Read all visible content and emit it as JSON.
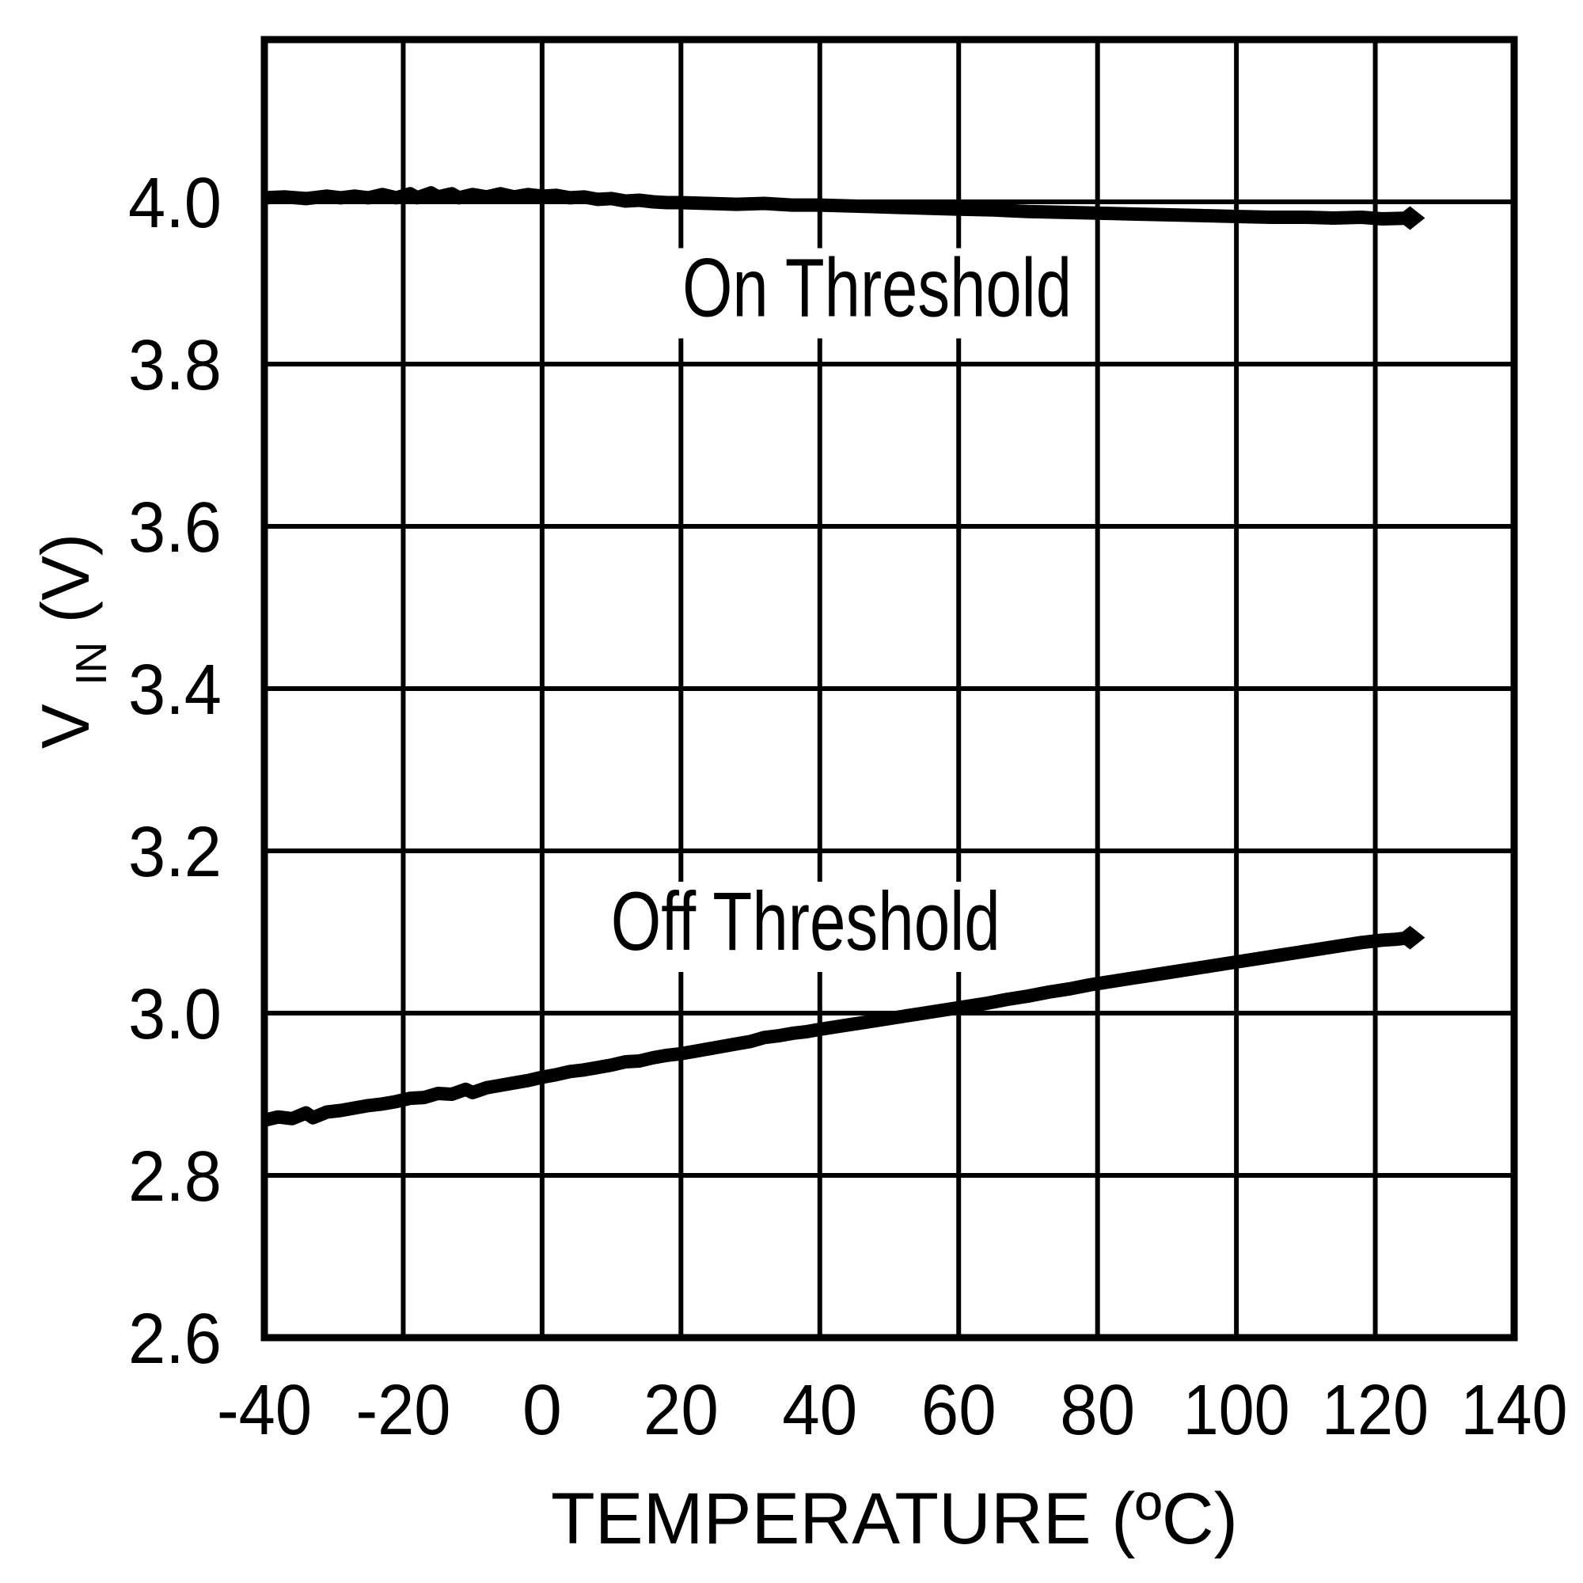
{
  "chart_data": {
    "type": "line",
    "title": "",
    "xlabel": "TEMPERATURE (ºC)",
    "ylabel": {
      "main": "V",
      "sub": "IN",
      "unit": " (V)"
    },
    "xlim": [
      -40,
      140
    ],
    "ylim": [
      2.6,
      4.2
    ],
    "x_tick_step": 20,
    "y_tick_step": 0.2,
    "x_tick_labels": [
      "-40",
      "-20",
      "0",
      "20",
      "40",
      "60",
      "80",
      "100",
      "120",
      "140"
    ],
    "y_tick_labels": [
      "2.6",
      "2.8",
      "3.0",
      "3.2",
      "3.4",
      "3.6",
      "3.8",
      "4.0"
    ],
    "grid": true,
    "background_color": "#ffffff",
    "line_color": "#000000",
    "legend_position": "inline-annotations",
    "annotations": [
      {
        "text": "On Threshold",
        "x": 20.2,
        "y": 3.859
      },
      {
        "text": "Off Threshold",
        "x": 9.9,
        "y": 3.078
      }
    ],
    "series": [
      {
        "name": "On Threshold",
        "end_marker": "diamond",
        "points": [
          [
            -40,
            4.005
          ],
          [
            -37,
            4.006
          ],
          [
            -34,
            4.004
          ],
          [
            -31,
            4.007
          ],
          [
            -29,
            4.005
          ],
          [
            -27,
            4.007
          ],
          [
            -25,
            4.005
          ],
          [
            -23,
            4.009
          ],
          [
            -21,
            4.005
          ],
          [
            -19,
            4.01
          ],
          [
            -18,
            4.005
          ],
          [
            -16,
            4.011
          ],
          [
            -15,
            4.006
          ],
          [
            -13,
            4.01
          ],
          [
            -12,
            4.005
          ],
          [
            -10,
            4.009
          ],
          [
            -8,
            4.006
          ],
          [
            -6,
            4.01
          ],
          [
            -4,
            4.006
          ],
          [
            -2,
            4.009
          ],
          [
            0,
            4.007
          ],
          [
            2,
            4.008
          ],
          [
            4,
            4.005
          ],
          [
            6,
            4.006
          ],
          [
            8,
            4.003
          ],
          [
            10,
            4.004
          ],
          [
            12,
            4.001
          ],
          [
            14,
            4.002
          ],
          [
            16,
            4.0
          ],
          [
            18,
            3.999
          ],
          [
            20,
            3.999
          ],
          [
            24,
            3.998
          ],
          [
            28,
            3.997
          ],
          [
            32,
            3.998
          ],
          [
            36,
            3.996
          ],
          [
            40,
            3.996
          ],
          [
            44,
            3.995
          ],
          [
            48,
            3.994
          ],
          [
            52,
            3.993
          ],
          [
            56,
            3.992
          ],
          [
            60,
            3.991
          ],
          [
            65,
            3.99
          ],
          [
            70,
            3.988
          ],
          [
            75,
            3.987
          ],
          [
            80,
            3.986
          ],
          [
            85,
            3.985
          ],
          [
            90,
            3.984
          ],
          [
            95,
            3.983
          ],
          [
            100,
            3.982
          ],
          [
            105,
            3.981
          ],
          [
            110,
            3.981
          ],
          [
            114,
            3.98
          ],
          [
            118,
            3.981
          ],
          [
            121,
            3.979
          ],
          [
            125,
            3.98
          ]
        ]
      },
      {
        "name": "Off Threshold",
        "end_marker": "diamond",
        "points": [
          [
            -40,
            2.868
          ],
          [
            -38,
            2.872
          ],
          [
            -36,
            2.87
          ],
          [
            -34,
            2.877
          ],
          [
            -33,
            2.871
          ],
          [
            -31,
            2.878
          ],
          [
            -29,
            2.88
          ],
          [
            -27,
            2.883
          ],
          [
            -25,
            2.886
          ],
          [
            -23,
            2.888
          ],
          [
            -21,
            2.891
          ],
          [
            -19,
            2.895
          ],
          [
            -17,
            2.896
          ],
          [
            -15,
            2.901
          ],
          [
            -13,
            2.9
          ],
          [
            -11,
            2.906
          ],
          [
            -10,
            2.902
          ],
          [
            -8,
            2.908
          ],
          [
            -6,
            2.911
          ],
          [
            -4,
            2.914
          ],
          [
            -2,
            2.917
          ],
          [
            0,
            2.921
          ],
          [
            2,
            2.924
          ],
          [
            4,
            2.928
          ],
          [
            6,
            2.93
          ],
          [
            8,
            2.933
          ],
          [
            10,
            2.936
          ],
          [
            12,
            2.94
          ],
          [
            14,
            2.941
          ],
          [
            16,
            2.945
          ],
          [
            18,
            2.948
          ],
          [
            20,
            2.95
          ],
          [
            22,
            2.953
          ],
          [
            24,
            2.956
          ],
          [
            26,
            2.959
          ],
          [
            28,
            2.962
          ],
          [
            30,
            2.965
          ],
          [
            32,
            2.97
          ],
          [
            34,
            2.972
          ],
          [
            36,
            2.975
          ],
          [
            38,
            2.977
          ],
          [
            40,
            2.98
          ],
          [
            43,
            2.984
          ],
          [
            46,
            2.988
          ],
          [
            49,
            2.992
          ],
          [
            52,
            2.996
          ],
          [
            55,
            3.0
          ],
          [
            58,
            3.004
          ],
          [
            61,
            3.008
          ],
          [
            64,
            3.012
          ],
          [
            67,
            3.017
          ],
          [
            70,
            3.021
          ],
          [
            73,
            3.026
          ],
          [
            76,
            3.03
          ],
          [
            79,
            3.035
          ],
          [
            82,
            3.039
          ],
          [
            85,
            3.043
          ],
          [
            88,
            3.047
          ],
          [
            91,
            3.051
          ],
          [
            94,
            3.055
          ],
          [
            97,
            3.059
          ],
          [
            100,
            3.063
          ],
          [
            103,
            3.067
          ],
          [
            106,
            3.071
          ],
          [
            109,
            3.075
          ],
          [
            112,
            3.079
          ],
          [
            115,
            3.083
          ],
          [
            118,
            3.087
          ],
          [
            121,
            3.09
          ],
          [
            123,
            3.091
          ],
          [
            125,
            3.093
          ]
        ]
      }
    ]
  }
}
